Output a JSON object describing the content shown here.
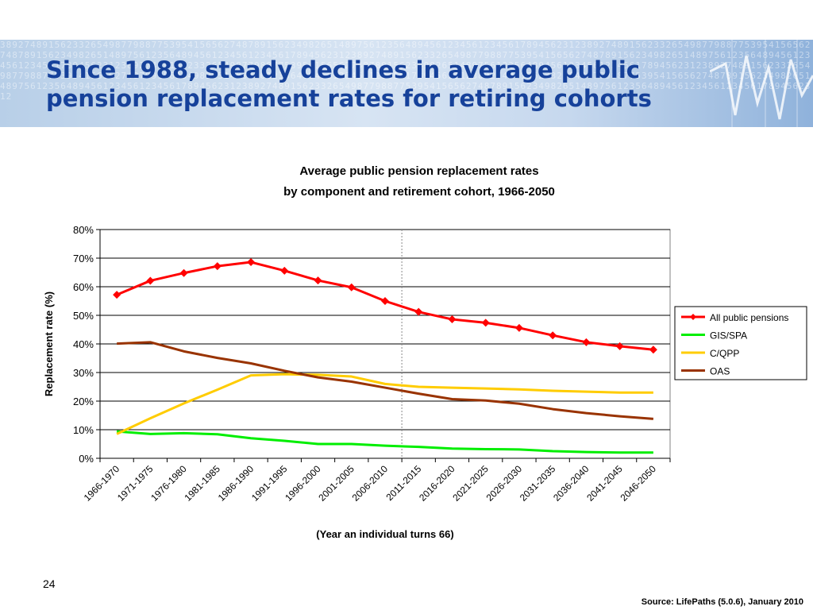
{
  "slide": {
    "title_line1": "Since 1988, steady declines in  average public",
    "title_line2": "pension replacement rates for retiring cohorts",
    "number": "24",
    "source": "Source:  LifePaths  (5.0.6), January 2010"
  },
  "chart_data": {
    "type": "line",
    "title": "Average public pension replacement rates",
    "subtitle": "by component and retirement cohort, 1966-2050",
    "xlabel": "(Year an individual turns 66)",
    "ylabel": "Replacement rate (%)",
    "ylim": [
      0,
      80
    ],
    "yticks": [
      "0%",
      "10%",
      "20%",
      "30%",
      "40%",
      "50%",
      "60%",
      "70%",
      "80%"
    ],
    "grid": true,
    "legend_position": "right",
    "vertical_marker_after": "2006-2010",
    "categories": [
      "1966-1970",
      "1971-1975",
      "1976-1980",
      "1981-1985",
      "1986-1990",
      "1991-1995",
      "1996-2000",
      "2001-2005",
      "2006-2010",
      "2011-2015",
      "2016-2020",
      "2021-2025",
      "2026-2030",
      "2031-2035",
      "2036-2040",
      "2041-2045",
      "2046-2050"
    ],
    "series": [
      {
        "name": "All public pensions",
        "color": "#ff0000",
        "marker": "diamond",
        "values": [
          57.2,
          62.1,
          64.8,
          67.2,
          68.6,
          65.6,
          62.2,
          59.8,
          55.0,
          51.2,
          48.6,
          47.4,
          45.6,
          43.0,
          40.6,
          39.2,
          38.0
        ]
      },
      {
        "name": "GIS/SPA",
        "color": "#00ee00",
        "values": [
          9.4,
          8.5,
          8.8,
          8.4,
          7.0,
          6.1,
          5.0,
          5.0,
          4.4,
          4.0,
          3.4,
          3.2,
          3.1,
          2.5,
          2.2,
          2.0,
          2.0
        ]
      },
      {
        "name": "C/QPP",
        "color": "#ffcc00",
        "values": [
          8.5,
          14.0,
          19.2,
          24.0,
          29.0,
          29.4,
          29.2,
          28.6,
          26.0,
          25.0,
          24.7,
          24.4,
          24.1,
          23.6,
          23.3,
          23.0,
          23.0
        ]
      },
      {
        "name": "OAS",
        "color": "#993300",
        "values": [
          40.1,
          40.6,
          37.4,
          35.1,
          33.2,
          30.6,
          28.3,
          26.8,
          24.7,
          22.6,
          20.7,
          20.2,
          19.1,
          17.2,
          15.8,
          14.7,
          13.8
        ]
      }
    ]
  }
}
